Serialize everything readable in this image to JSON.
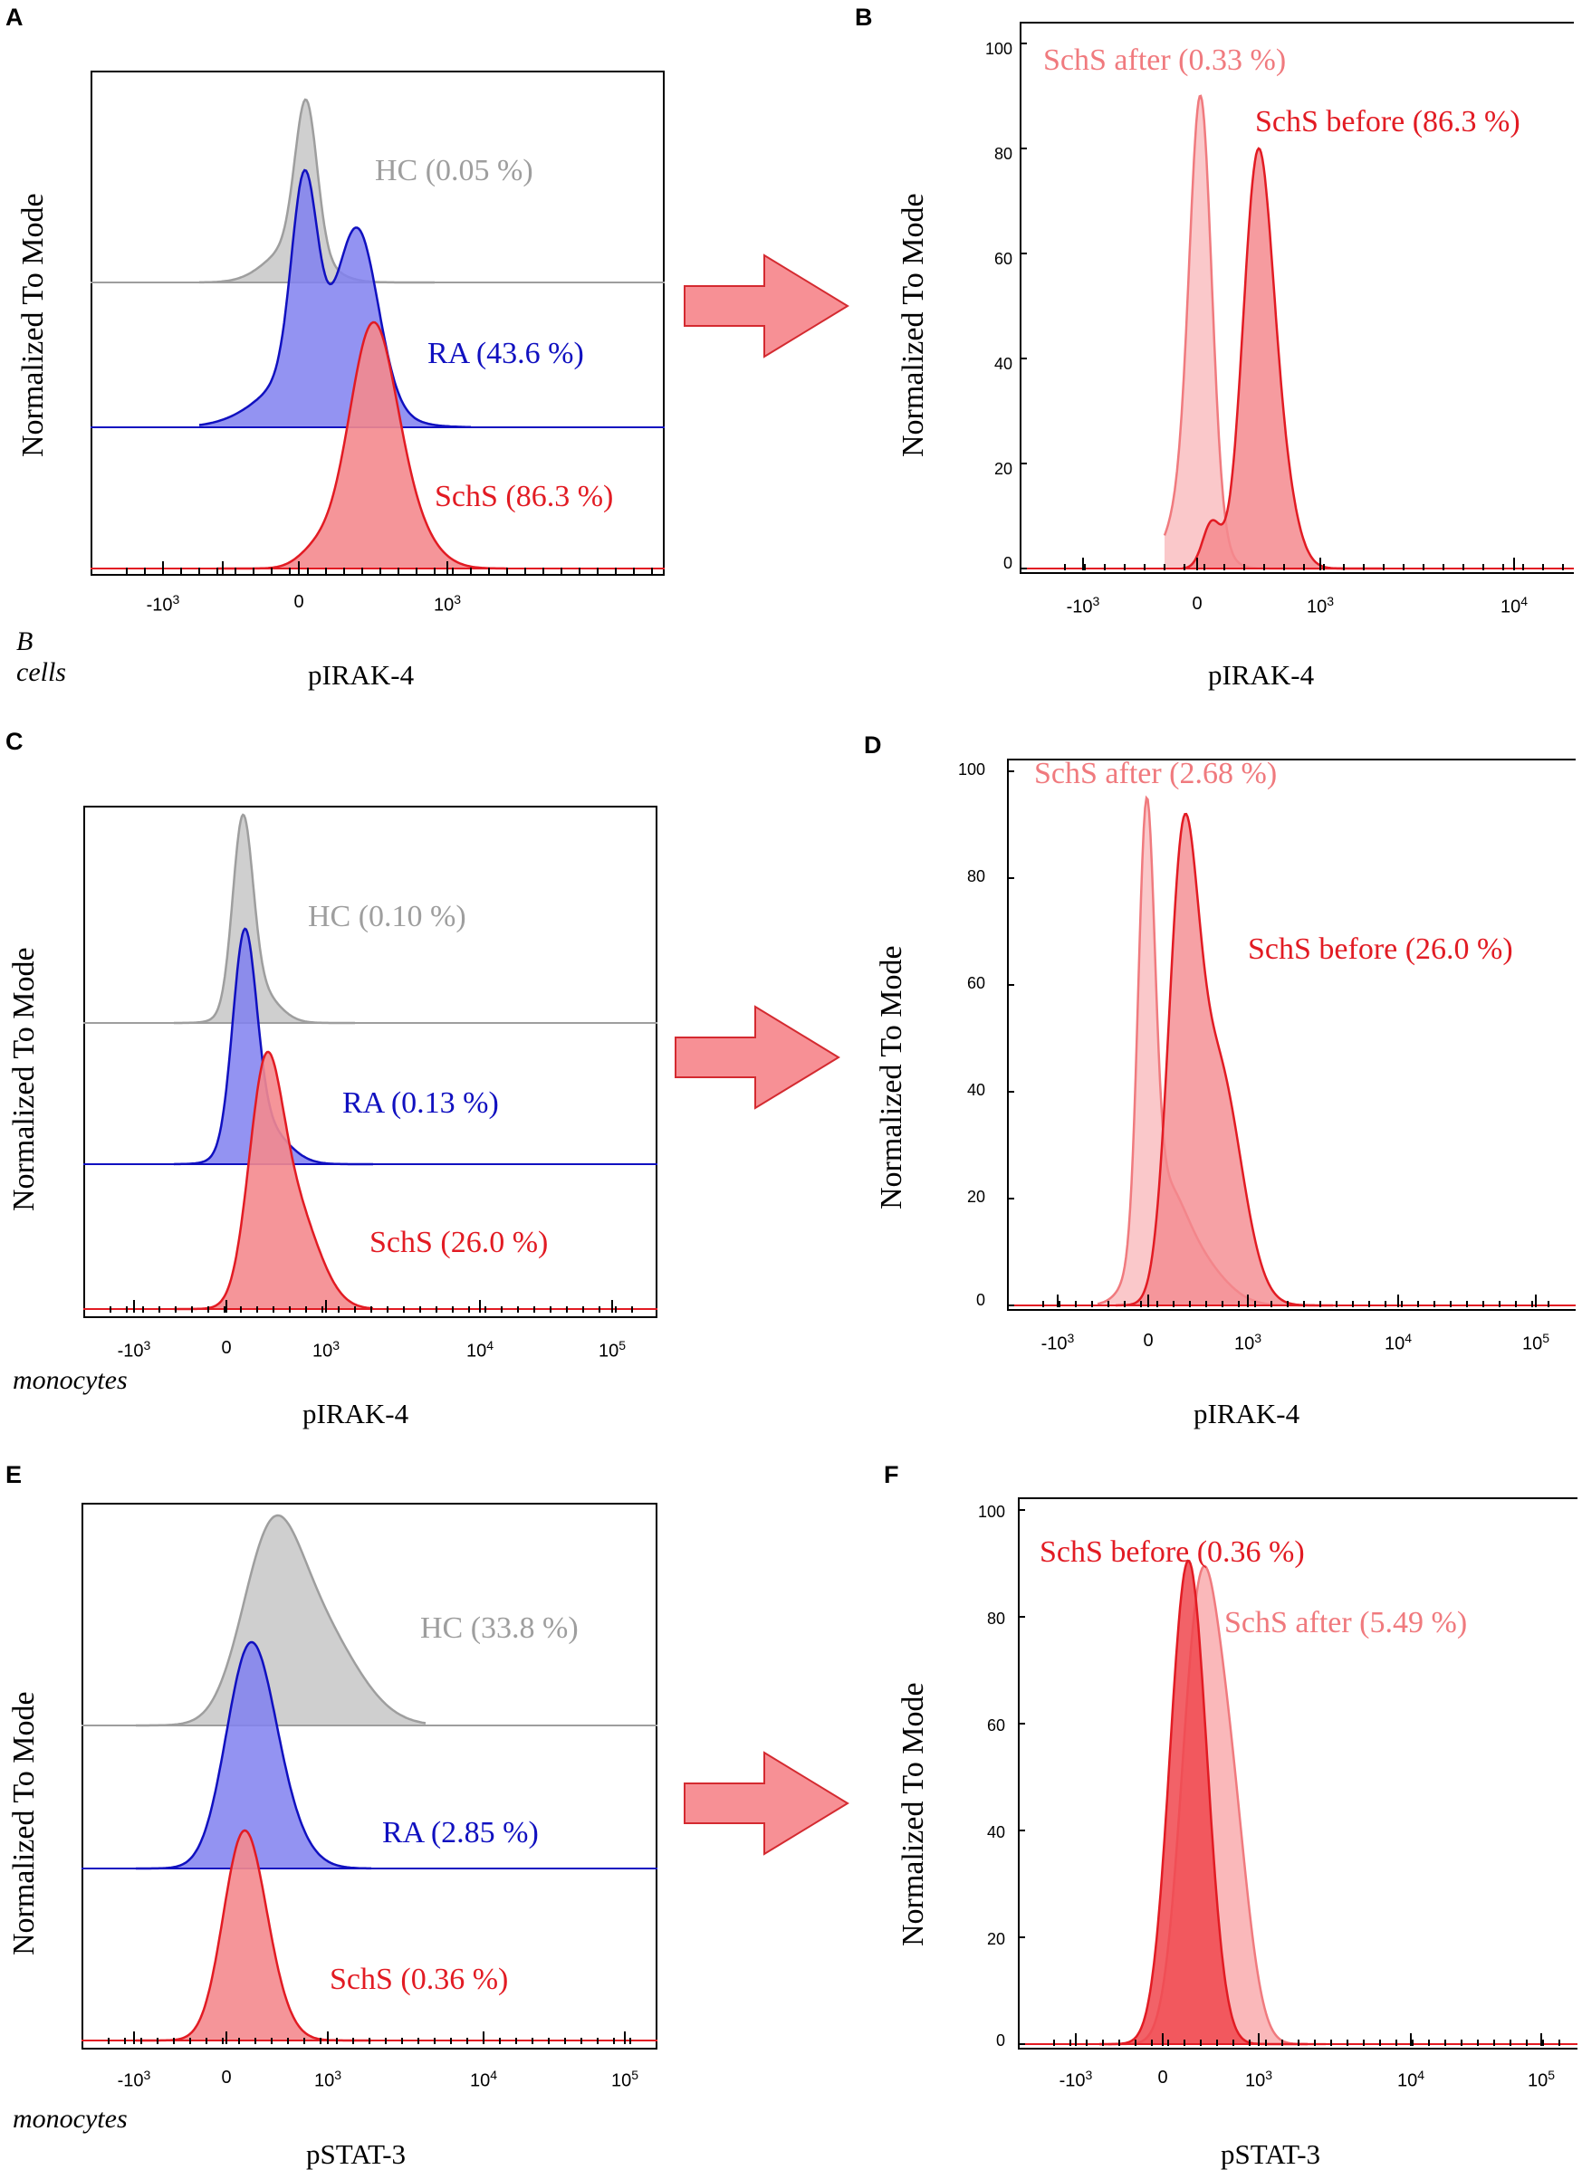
{
  "chart_data": [
    {
      "id": "A",
      "type": "area",
      "panel_letter": "A",
      "xlabel": "pIRAK-4",
      "ylabel": "Normalized To Mode",
      "cell_type": "B cells",
      "xticks": [
        "-10^3",
        "0",
        "10^3"
      ],
      "series": [
        {
          "name": "HC",
          "label": "HC (0.05 %)",
          "color": "#9e9e9e",
          "fill": "#cfcfcf",
          "peak_x": 0.1,
          "peak_height": 1.0,
          "width": 0.35
        },
        {
          "name": "RA",
          "label": "RA (43.6 %)",
          "color": "#1010c0",
          "fill": "#8080f0",
          "peak_x": 0.2,
          "peak_height": 0.95,
          "width": 0.5
        },
        {
          "name": "SchS",
          "label": "SchS (86.3 %)",
          "color": "#e21b23",
          "fill": "#f48a8e",
          "peak_x": 0.55,
          "peak_height": 1.0,
          "width": 0.45
        }
      ]
    },
    {
      "id": "B",
      "type": "area",
      "panel_letter": "B",
      "xlabel": "pIRAK-4",
      "ylabel": "Normalized To Mode",
      "yticks": [
        "100",
        "80",
        "60",
        "40",
        "20",
        "0"
      ],
      "xticks": [
        "-10^3",
        "0",
        "10^3",
        "10^4"
      ],
      "ylim": [
        0,
        100
      ],
      "series": [
        {
          "name": "SchS after",
          "label": "SchS after (0.33 %)",
          "color": "#f07a7e",
          "fill": "#f9c2c4",
          "peak": 90
        },
        {
          "name": "SchS before",
          "label": "SchS before (86.3 %)",
          "color": "#e21b23",
          "fill": "#f48a8e",
          "peak": 80
        }
      ]
    },
    {
      "id": "C",
      "type": "area",
      "panel_letter": "C",
      "xlabel": "pIRAK-4",
      "ylabel": "Normalized To Mode",
      "cell_type": "monocytes",
      "xticks": [
        "-10^3",
        "0",
        "10^3",
        "10^4",
        "10^5"
      ],
      "series": [
        {
          "name": "HC",
          "label": "HC (0.10 %)",
          "color": "#9e9e9e",
          "fill": "#cfcfcf"
        },
        {
          "name": "RA",
          "label": "RA (0.13 %)",
          "color": "#1010c0",
          "fill": "#8080f0"
        },
        {
          "name": "SchS",
          "label": "SchS (26.0 %)",
          "color": "#e21b23",
          "fill": "#f48a8e"
        }
      ]
    },
    {
      "id": "D",
      "type": "area",
      "panel_letter": "D",
      "xlabel": "pIRAK-4",
      "ylabel": "Normalized To Mode",
      "yticks": [
        "100",
        "80",
        "60",
        "40",
        "20",
        "0"
      ],
      "xticks": [
        "-10^3",
        "0",
        "10^3",
        "10^4",
        "10^5"
      ],
      "ylim": [
        0,
        100
      ],
      "series": [
        {
          "name": "SchS after",
          "label": "SchS after (2.68 %)",
          "color": "#f07a7e",
          "fill": "#f9c2c4",
          "peak": 95
        },
        {
          "name": "SchS before",
          "label": "SchS before (26.0 %)",
          "color": "#e21b23",
          "fill": "#f48a8e",
          "peak": 92
        }
      ]
    },
    {
      "id": "E",
      "type": "area",
      "panel_letter": "E",
      "xlabel": "pSTAT-3",
      "ylabel": "Normalized To Mode",
      "cell_type": "monocytes",
      "xticks": [
        "-10^3",
        "0",
        "10^3",
        "10^4",
        "10^5"
      ],
      "series": [
        {
          "name": "HC",
          "label": "HC (33.8 %)",
          "color": "#9e9e9e",
          "fill": "#cfcfcf"
        },
        {
          "name": "RA",
          "label": "RA (2.85 %)",
          "color": "#1010c0",
          "fill": "#8080f0"
        },
        {
          "name": "SchS",
          "label": "SchS (0.36 %)",
          "color": "#e21b23",
          "fill": "#f48a8e"
        }
      ]
    },
    {
      "id": "F",
      "type": "area",
      "panel_letter": "F",
      "xlabel": "pSTAT-3",
      "ylabel": "Normalized To Mode",
      "yticks": [
        "100",
        "80",
        "60",
        "40",
        "20",
        "0"
      ],
      "xticks": [
        "-10^3",
        "0",
        "10^3",
        "10^4",
        "10^5"
      ],
      "ylim": [
        0,
        100
      ],
      "series": [
        {
          "name": "SchS before",
          "label": "SchS before (0.36 %)",
          "color": "#e21b23",
          "fill": "#f0474d",
          "peak": 89
        },
        {
          "name": "SchS after",
          "label": "SchS after (5.49 %)",
          "color": "#f07a7e",
          "fill": "#f9b0b3",
          "peak": 88
        }
      ]
    }
  ],
  "colors": {
    "arrow_fill": "#f79095",
    "arrow_stroke": "#d42a30"
  }
}
